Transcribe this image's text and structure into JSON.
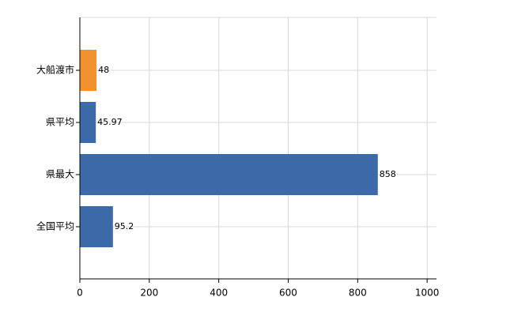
{
  "chart_data": {
    "type": "bar",
    "orientation": "horizontal",
    "categories": [
      "大船渡市",
      "県平均",
      "県最大",
      "全国平均"
    ],
    "values": [
      48,
      45.97,
      858,
      95.2
    ],
    "colors": [
      "#f0932e",
      "#3c6aa8",
      "#3c6aa8",
      "#3c6aa8"
    ],
    "xlim": [
      0,
      1027
    ],
    "xticks": [
      0,
      200,
      400,
      600,
      800,
      1000
    ],
    "grid": true
  }
}
